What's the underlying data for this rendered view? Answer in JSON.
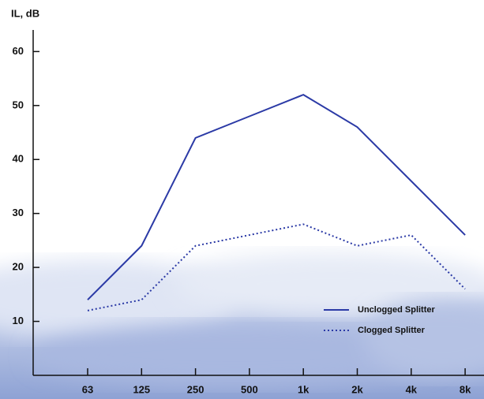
{
  "chart_data": {
    "type": "line",
    "ylabel": "IL, dB",
    "categories": [
      "63",
      "125",
      "250",
      "500",
      "1k",
      "2k",
      "4k",
      "8k"
    ],
    "series": [
      {
        "name": "Unclogged Splitter",
        "color": "#2b3aa6",
        "style": "solid",
        "values": [
          14,
          24,
          44,
          48,
          52,
          46,
          36,
          26
        ]
      },
      {
        "name": "Clogged Splitter",
        "color": "#2b3aa6",
        "style": "dotted",
        "values": [
          12,
          14,
          24,
          26,
          28,
          24,
          26,
          16
        ]
      }
    ],
    "ylim": [
      0,
      64
    ],
    "yticks": [
      10,
      20,
      30,
      40,
      50,
      60
    ],
    "legend": "lower right"
  }
}
